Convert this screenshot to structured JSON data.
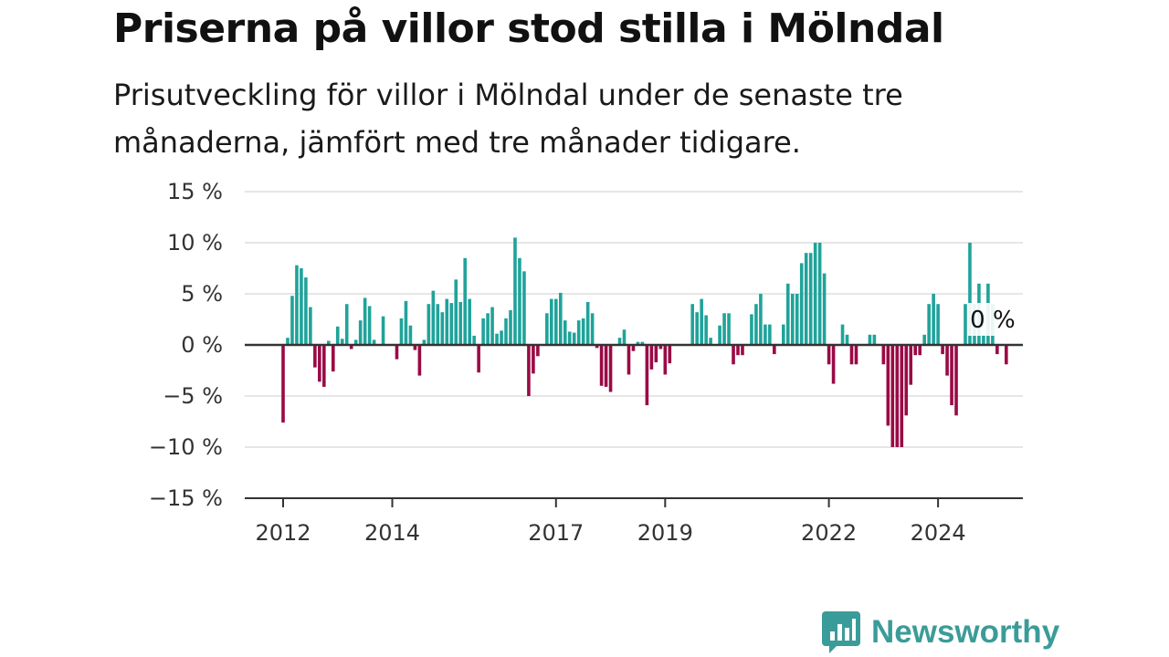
{
  "header": {
    "title": "Priserna på villor stod stilla i Mölndal",
    "subtitle": "Prisutveckling för villor i Mölndal under de senaste tre månaderna, jämfört med tre månader tidigare."
  },
  "logo": {
    "text": "Newsworthy",
    "icon": "newsworthy-bar-chart-icon",
    "color": "#3a9c98"
  },
  "colors": {
    "positive": "#1fa39a",
    "negative": "#9a0a45",
    "grid": "#dddddd",
    "zero_line": "#333333"
  },
  "chart_data": {
    "type": "bar",
    "title": "Priserna på villor stod stilla i Mölndal",
    "ylim": [
      -15,
      15
    ],
    "y_ticks": [
      15,
      10,
      5,
      0,
      -5,
      -10,
      -15
    ],
    "y_tick_labels": [
      "15 %",
      "10 %",
      "5 %",
      "0 %",
      "−5 %",
      "−10 %",
      "−15 %"
    ],
    "x_ticks": [
      "2012",
      "2014",
      "2017",
      "2019",
      "2022",
      "2024"
    ],
    "x_tick_labels": [
      "2012",
      "2014",
      "2017",
      "2019",
      "2022",
      "2024"
    ],
    "x_start": "2012-01",
    "annotation": {
      "label": "0 %",
      "at": "2024-12"
    },
    "grid": true,
    "series": [
      {
        "values": [
          -7.6,
          0.7,
          4.8,
          7.8,
          7.5,
          6.6,
          3.7,
          -2.2,
          -3.6,
          -4.1,
          0.4,
          -2.6,
          1.8,
          0.6,
          4.0,
          -0.4,
          0.5,
          2.4,
          4.6,
          3.8,
          0.5,
          0.0,
          2.8,
          0.0,
          0.0,
          -1.4,
          2.6,
          4.3,
          1.9,
          -0.5,
          -3.0,
          0.5,
          4.0,
          5.3,
          4.0,
          3.2,
          4.5,
          4.1,
          6.4,
          4.2,
          8.5,
          4.5,
          0.9,
          -2.7,
          2.6,
          3.1,
          3.7,
          1.1,
          1.4,
          2.6,
          3.4,
          10.5,
          8.5,
          7.2,
          -5.0,
          -2.8,
          -1.1,
          0.0,
          3.1,
          4.5,
          4.5,
          5.1,
          2.4,
          1.3,
          1.2,
          2.4,
          2.6,
          4.2,
          3.1,
          -0.3,
          -4.0,
          -4.1,
          -4.6,
          0.0,
          0.7,
          1.5,
          -2.9,
          -0.6,
          0.3,
          0.3,
          -5.9,
          -2.4,
          -1.7,
          -0.4,
          -2.9,
          -1.8,
          0.0,
          0.0,
          0.0,
          0.0,
          4.0,
          3.2,
          4.5,
          2.9,
          0.7,
          0.0,
          1.9,
          3.1,
          3.1,
          -1.9,
          -1.0,
          -1.0,
          0.0,
          3.0,
          4.0,
          5.0,
          2.0,
          2.0,
          -0.9,
          0.0,
          2.0,
          6.0,
          5.0,
          5.0,
          8.0,
          9.0,
          9.0,
          10.0,
          10.0,
          7.0,
          -1.9,
          -3.8,
          0.0,
          2.0,
          1.0,
          -1.9,
          -1.9,
          0.0,
          0.0,
          1.0,
          1.0,
          0.0,
          -1.9,
          -7.9,
          -10.0,
          -10.0,
          -10.0,
          -6.9,
          -3.9,
          -1.0,
          -1.0,
          1.0,
          4.0,
          5.0,
          4.0,
          -0.9,
          -3.0,
          -5.9,
          -6.9,
          0.0,
          4.0,
          10.0,
          4.0,
          6.0,
          1.0,
          6.0,
          4.0,
          -0.9,
          0.0,
          -1.9,
          0.0
        ]
      }
    ]
  }
}
